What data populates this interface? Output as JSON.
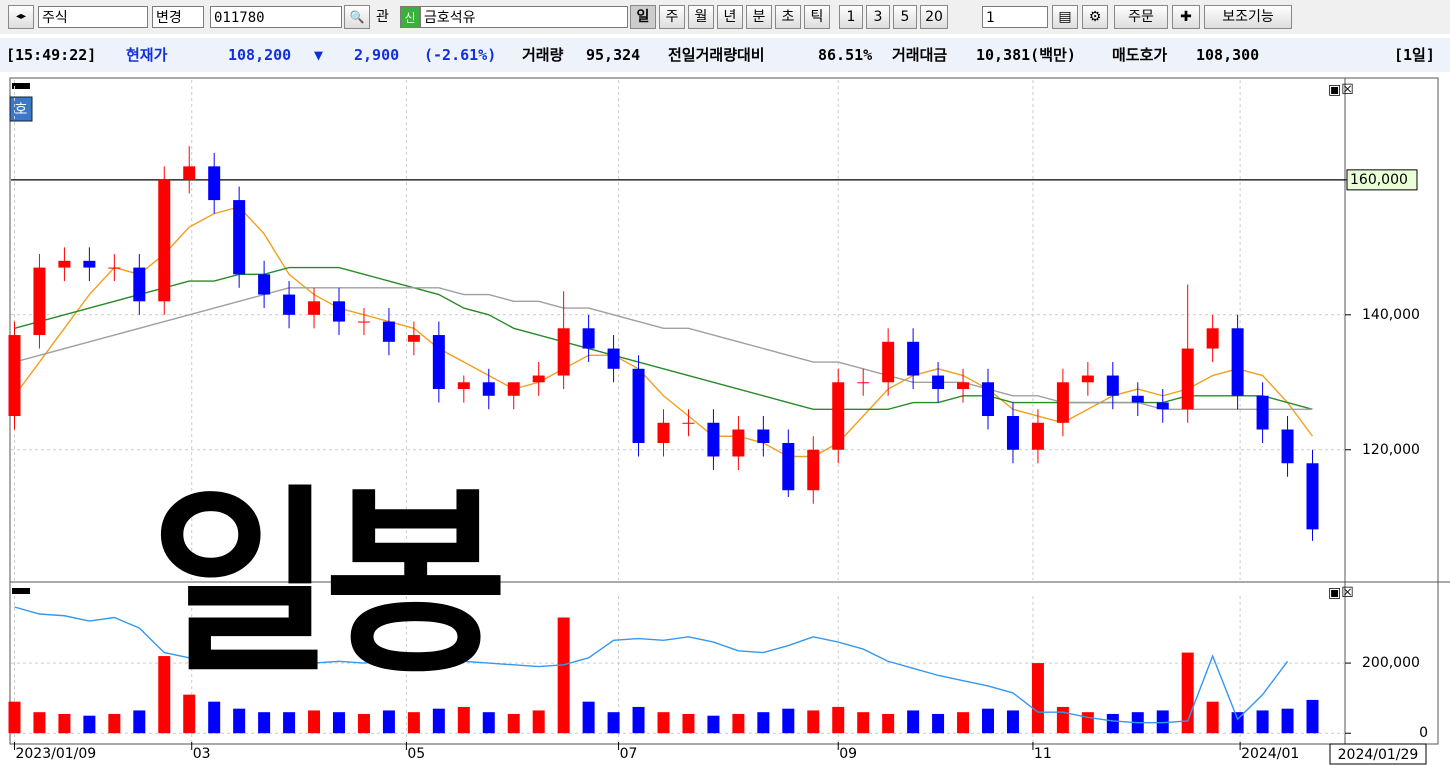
{
  "toolbar": {
    "market": "주식",
    "change": "변경",
    "code": "011780",
    "gwan": "관",
    "new_badge": "신",
    "name": "금호석유",
    "periods": [
      "일",
      "주",
      "월",
      "년",
      "분",
      "초",
      "틱"
    ],
    "intervals": [
      "1",
      "3",
      "5",
      "20"
    ],
    "count": "1",
    "order": "주문",
    "aux": "보조기능"
  },
  "info_bar": {
    "time": "[15:49:22]",
    "price_label": "현재가",
    "price": "108,200",
    "arrow": "▼",
    "change": "2,900",
    "change_pct": "(-2.61%)",
    "volume_label": "거래량",
    "volume": "95,324",
    "prev_ratio_label": "전일거래량대비",
    "prev_ratio": "86.51%",
    "amount_label": "거래대금",
    "amount": "10,381(백만)",
    "ask_label": "매도호가",
    "ask": "108,300",
    "period": "[1일]"
  },
  "overlay_text": "일봉",
  "price_badge": "호",
  "chart_data": [
    {
      "type": "candlestick",
      "up_color": "#ff0000",
      "down_color": "#0000ff",
      "x": [
        0,
        1,
        2,
        3,
        4,
        5,
        6,
        7,
        8,
        9,
        10,
        11,
        12,
        13,
        14,
        15,
        16,
        17,
        18,
        19,
        20,
        21,
        22,
        23,
        24,
        25,
        26,
        27,
        28,
        29,
        30,
        31,
        32,
        33,
        34,
        35,
        36,
        37,
        38,
        39,
        40,
        41,
        42,
        43,
        44,
        45,
        46,
        47,
        48,
        49,
        50,
        51,
        52
      ],
      "open": [
        125000,
        137000,
        147000,
        148000,
        147000,
        147000,
        142000,
        160000,
        162000,
        157000,
        146000,
        143000,
        140000,
        142000,
        139000,
        139000,
        136000,
        137000,
        129000,
        130000,
        128000,
        130000,
        131000,
        138000,
        135000,
        132000,
        121000,
        124000,
        124000,
        119000,
        123000,
        121000,
        114000,
        120000,
        130000,
        130000,
        136000,
        131000,
        129000,
        130000,
        125000,
        120000,
        124000,
        130000,
        131000,
        128000,
        127000,
        126000,
        135000,
        138000,
        128000,
        123000,
        118000
      ],
      "high": [
        139000,
        149000,
        150000,
        150000,
        149000,
        149000,
        162000,
        165000,
        164000,
        159000,
        148000,
        145000,
        144000,
        144000,
        141000,
        141000,
        139000,
        139000,
        131000,
        132000,
        130000,
        133000,
        143500,
        140000,
        137000,
        134000,
        126000,
        126000,
        126000,
        125000,
        125000,
        123000,
        122000,
        132000,
        132000,
        138000,
        138000,
        133000,
        132000,
        132000,
        127000,
        126000,
        132000,
        133000,
        133000,
        130000,
        129000,
        144500,
        140000,
        140000,
        130000,
        125000,
        120000
      ],
      "low": [
        123000,
        135000,
        145000,
        145000,
        145000,
        140000,
        140000,
        158000,
        155000,
        144000,
        141000,
        138000,
        138000,
        137000,
        137000,
        134000,
        134000,
        127000,
        127000,
        126000,
        126000,
        128000,
        129000,
        133000,
        130000,
        119000,
        119000,
        122000,
        117000,
        117000,
        119000,
        113000,
        112000,
        118000,
        128000,
        128000,
        129000,
        127000,
        127000,
        123000,
        118000,
        118000,
        122000,
        128000,
        126000,
        125000,
        124000,
        124000,
        133000,
        126000,
        121000,
        116000,
        106500
      ],
      "close": [
        137000,
        147000,
        148000,
        147000,
        147000,
        142000,
        160000,
        162000,
        157000,
        146000,
        143000,
        140000,
        142000,
        139000,
        139000,
        136000,
        137000,
        129000,
        130000,
        128000,
        130000,
        131000,
        138000,
        135000,
        132000,
        121000,
        124000,
        124000,
        119000,
        123000,
        121000,
        114000,
        120000,
        130000,
        130000,
        136000,
        131000,
        129000,
        130000,
        125000,
        120000,
        124000,
        130000,
        131000,
        128000,
        127000,
        126000,
        135000,
        138000,
        128000,
        123000,
        118000,
        108200
      ],
      "series": [
        {
          "color": "#f0a020",
          "values": [
            128000,
            133000,
            138000,
            143000,
            147000,
            146000,
            149000,
            153000,
            155000,
            156000,
            152000,
            146000,
            143000,
            141000,
            140000,
            139000,
            138000,
            135000,
            133000,
            131000,
            129000,
            130000,
            132000,
            134000,
            134000,
            132000,
            128000,
            125000,
            122000,
            122000,
            121000,
            119000,
            119000,
            121000,
            125000,
            129000,
            131000,
            132000,
            131000,
            129000,
            126000,
            125000,
            124000,
            126000,
            128000,
            129000,
            128000,
            129000,
            131000,
            132000,
            131000,
            127000,
            122000
          ]
        },
        {
          "color": "#2a8a2a",
          "values": [
            138000,
            139000,
            140000,
            141000,
            142000,
            143000,
            144000,
            145000,
            145000,
            146000,
            146000,
            147000,
            147000,
            147000,
            146000,
            145000,
            144000,
            143000,
            141000,
            140000,
            138000,
            137000,
            136000,
            135000,
            134000,
            133000,
            132000,
            131000,
            130000,
            129000,
            128000,
            127000,
            126000,
            126000,
            126000,
            126000,
            127000,
            127000,
            128000,
            128000,
            127000,
            127000,
            127000,
            127000,
            127000,
            127000,
            127000,
            128000,
            128000,
            128000,
            128000,
            127000,
            126000
          ]
        },
        {
          "color": "#a0a0a0",
          "values": [
            133000,
            134000,
            135000,
            136000,
            137000,
            138000,
            139000,
            140000,
            141000,
            142000,
            143000,
            144000,
            144000,
            144000,
            144000,
            144000,
            144000,
            144000,
            143000,
            143000,
            142000,
            142000,
            141000,
            141000,
            140000,
            139000,
            138000,
            138000,
            137000,
            136000,
            135000,
            134000,
            133000,
            133000,
            132000,
            131000,
            130000,
            130000,
            130000,
            129000,
            128000,
            128000,
            127000,
            127000,
            127000,
            127000,
            126000,
            126000,
            126000,
            126000,
            126000,
            126000,
            126000
          ]
        }
      ],
      "hline": 160000,
      "xlim": [
        -0.1,
        52.1
      ],
      "ylim": [
        100400,
        174800
      ],
      "yticks": [
        {
          "value": 120000,
          "label": "120,000"
        },
        {
          "value": 140000,
          "label": "140,000"
        },
        {
          "value": 160000,
          "label": "160,000"
        }
      ],
      "grid": true
    },
    {
      "type": "bar",
      "up_color": "#ff0000",
      "down_color": "#0000ff",
      "x": [
        0,
        1,
        2,
        3,
        4,
        5,
        6,
        7,
        8,
        9,
        10,
        11,
        12,
        13,
        14,
        15,
        16,
        17,
        18,
        19,
        20,
        21,
        22,
        23,
        24,
        25,
        26,
        27,
        28,
        29,
        30,
        31,
        32,
        33,
        34,
        35,
        36,
        37,
        38,
        39,
        40,
        41,
        42,
        43,
        44,
        45,
        46,
        47,
        48,
        49,
        50,
        51,
        52
      ],
      "values": [
        90000,
        60000,
        55000,
        50000,
        55000,
        65000,
        220000,
        110000,
        90000,
        70000,
        60000,
        60000,
        65000,
        60000,
        55000,
        65000,
        60000,
        70000,
        75000,
        60000,
        55000,
        65000,
        330000,
        90000,
        60000,
        75000,
        60000,
        55000,
        50000,
        55000,
        60000,
        70000,
        65000,
        75000,
        60000,
        55000,
        65000,
        55000,
        60000,
        70000,
        65000,
        200000,
        75000,
        60000,
        55000,
        60000,
        65000,
        230000,
        90000,
        60000,
        65000,
        70000,
        95000
      ],
      "series": [
        {
          "color": "#3399ee",
          "values": [
            360000,
            340000,
            335000,
            320000,
            330000,
            300000,
            230000,
            215000,
            210000,
            215000,
            205000,
            195000,
            200000,
            205000,
            200000,
            210000,
            205000,
            200000,
            205000,
            200000,
            195000,
            190000,
            195000,
            215000,
            265000,
            270000,
            265000,
            275000,
            260000,
            235000,
            230000,
            250000,
            275000,
            260000,
            240000,
            205000,
            185000,
            165000,
            150000,
            135000,
            115000,
            60000,
            60000,
            45000,
            35000,
            30000,
            30000,
            35000,
            220000,
            40000,
            110000,
            205000,
            null
          ]
        }
      ],
      "xlim": [
        -0.1,
        52.1
      ],
      "ylim": [
        -25000,
        417000
      ],
      "yticks": [
        0,
        {
          "value": 200000,
          "label": "200,000"
        }
      ],
      "xticks": [
        {
          "value": 0,
          "label": "2023/01/09"
        },
        {
          "value": 7.1,
          "label": "03"
        },
        {
          "value": 15.7,
          "label": "05"
        },
        {
          "value": 24.2,
          "label": "07"
        },
        {
          "value": 33,
          "label": "09"
        },
        {
          "value": 40.8,
          "label": "11"
        },
        {
          "value": 49.1,
          "label": "2024/01"
        }
      ],
      "cursor_date": "2024/01/29",
      "grid": true
    }
  ]
}
